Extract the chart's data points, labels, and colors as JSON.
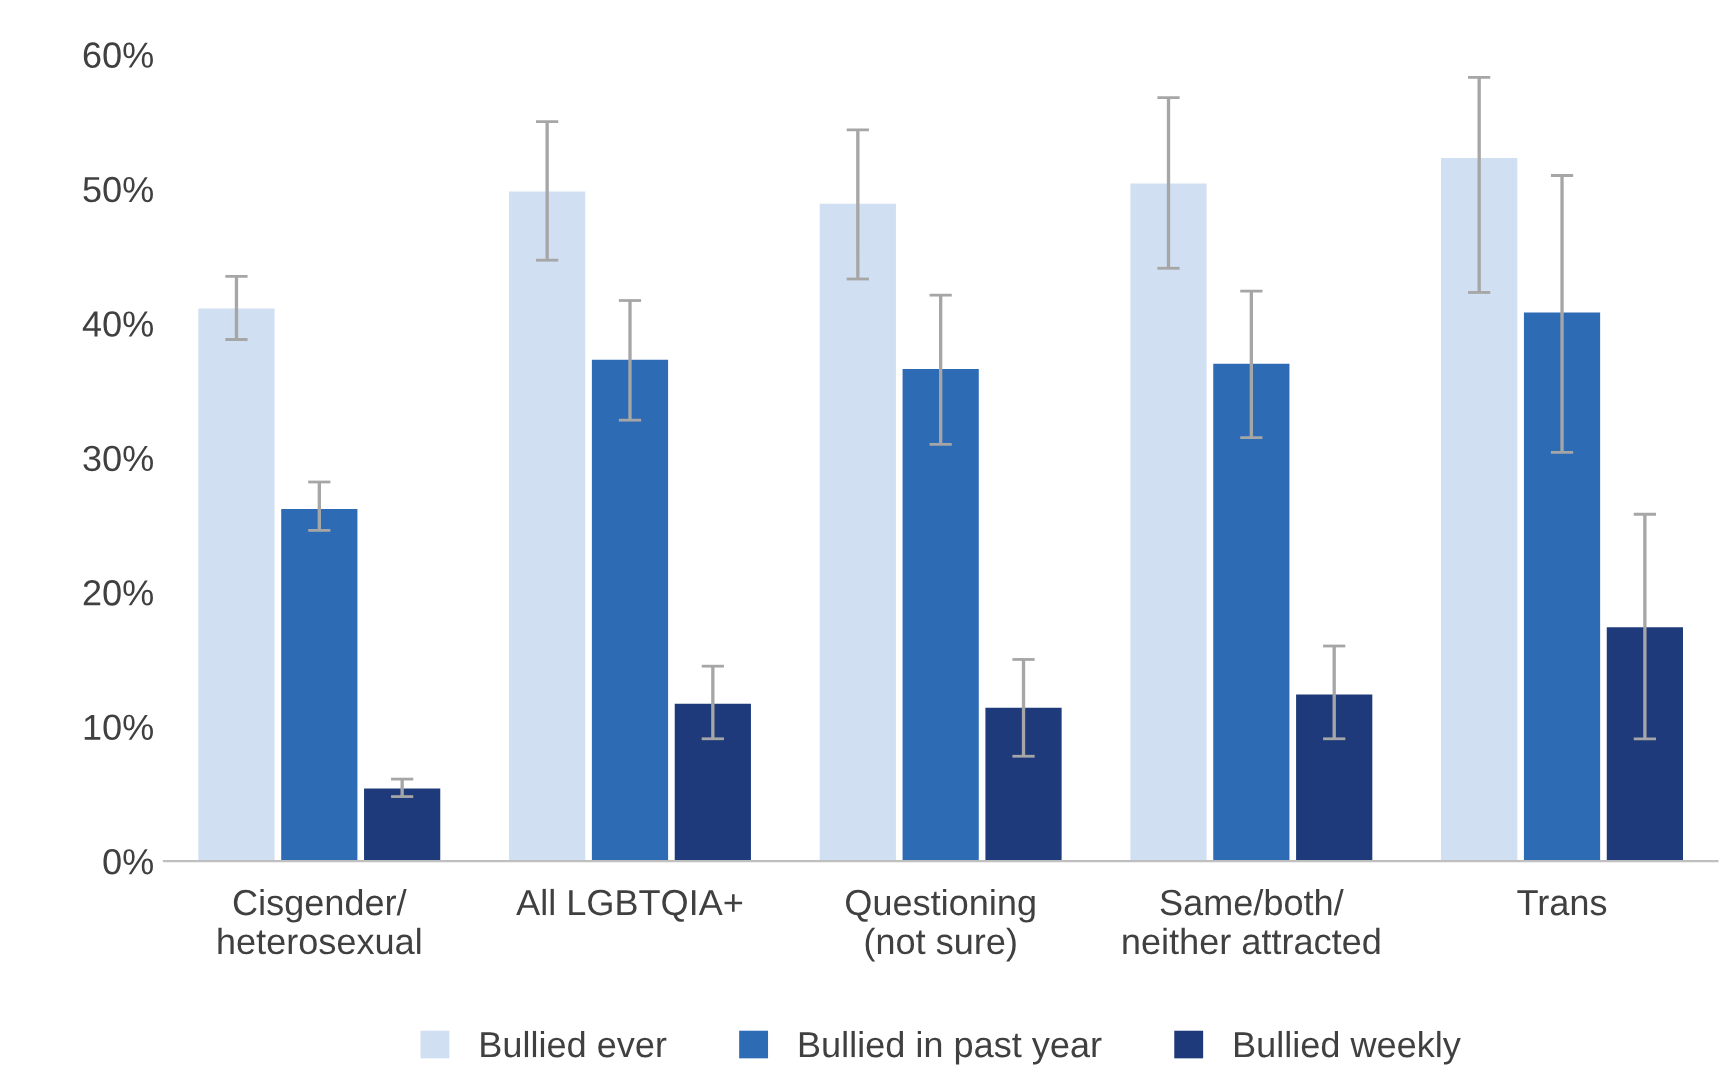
{
  "chart_data": {
    "type": "bar",
    "categories": [
      "Cisgender/\nheterosexual",
      "All LGBTQIA+",
      "Questioning\n(not sure)",
      "Same/both/\nneither attracted",
      "Trans"
    ],
    "series": [
      {
        "name": "Bullied ever",
        "color": "#d0dff2",
        "values": [
          41.1,
          49.8,
          48.9,
          50.4,
          52.3
        ],
        "errors": [
          [
            38.8,
            43.5
          ],
          [
            44.7,
            55.0
          ],
          [
            43.3,
            54.4
          ],
          [
            44.1,
            56.8
          ],
          [
            42.3,
            58.3
          ]
        ]
      },
      {
        "name": "Bullied in past year",
        "color": "#2e6bb5",
        "values": [
          26.2,
          37.3,
          36.6,
          37.0,
          40.8
        ],
        "errors": [
          [
            24.6,
            28.2
          ],
          [
            32.8,
            41.7
          ],
          [
            31.0,
            42.1
          ],
          [
            31.5,
            42.4
          ],
          [
            30.4,
            51.0
          ]
        ]
      },
      {
        "name": "Bullied weekly",
        "color": "#1f3a7a",
        "values": [
          5.4,
          11.7,
          11.4,
          12.4,
          17.4
        ],
        "errors": [
          [
            4.8,
            6.1
          ],
          [
            9.1,
            14.5
          ],
          [
            7.8,
            15.0
          ],
          [
            9.1,
            16.0
          ],
          [
            9.1,
            25.8
          ]
        ]
      }
    ],
    "ylim": [
      0,
      60
    ],
    "yticks": [
      {
        "value": 0,
        "label": "0%"
      },
      {
        "value": 10,
        "label": "10%"
      },
      {
        "value": 20,
        "label": "20%"
      },
      {
        "value": 30,
        "label": "30%"
      },
      {
        "value": 40,
        "label": "40%"
      },
      {
        "value": 50,
        "label": "50%"
      },
      {
        "value": 60,
        "label": "60%"
      }
    ],
    "legend": "bottom"
  }
}
